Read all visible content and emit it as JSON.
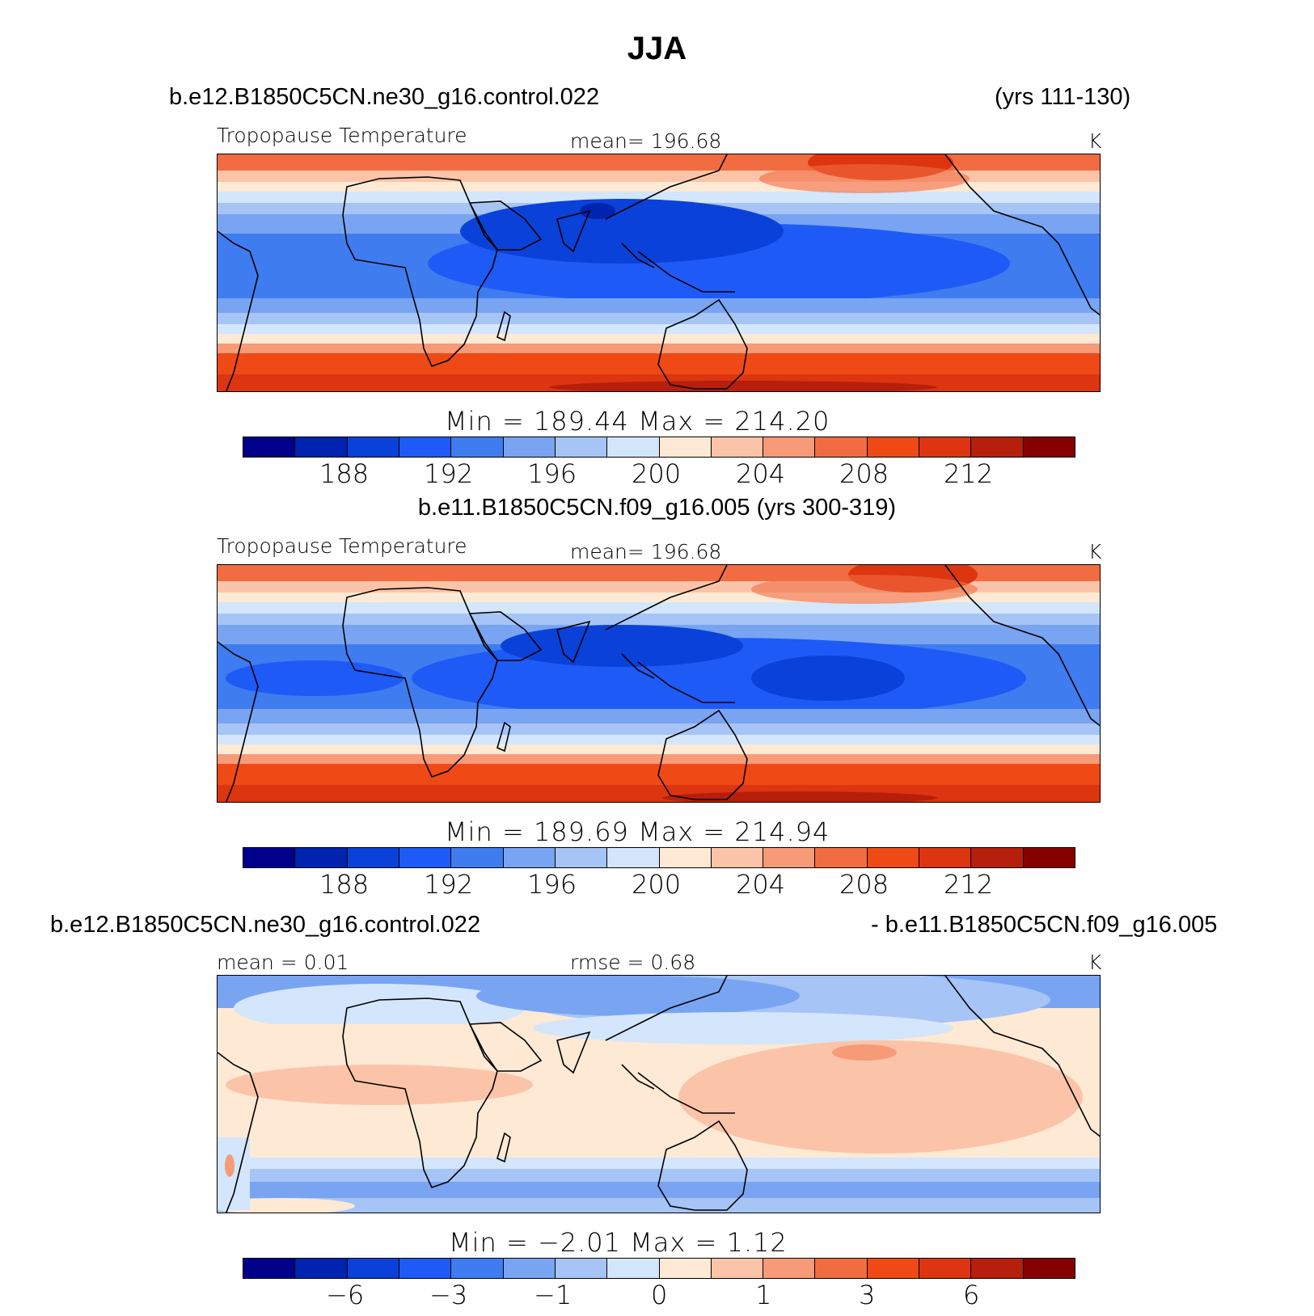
{
  "title": "JJA",
  "colors": [
    "#00008a",
    "#0023b0",
    "#0a41d8",
    "#1e5af6",
    "#3f7cf0",
    "#78a4f2",
    "#a6c4f6",
    "#d3e6fb",
    "#fde9d4",
    "#fbc4a8",
    "#f79a78",
    "#f26c42",
    "#ef4a16",
    "#dc3510",
    "#b61f0b",
    "#860000"
  ],
  "panels": [
    {
      "case_left": "b.e12.B1850C5CN.ne30_g16.control.022",
      "case_right": "(yrs 111-130)",
      "label_left": "Tropopause Temperature",
      "label_center": "mean=  196.68",
      "units": "K",
      "min_label": "Min",
      "min_value": "189.44",
      "max_label": "Max",
      "max_value": "214.20",
      "min_max_text": "Min  =  189.44  Max  =  214.20",
      "ticks": [
        "188",
        "192",
        "196",
        "200",
        "204",
        "208",
        "212"
      ]
    },
    {
      "case_left": "b.e11.B1850C5CN.f09_g16.005 (yrs 300-319)",
      "case_right": "",
      "label_left": "Tropopause Temperature",
      "label_center": "mean=  196.68",
      "units": "K",
      "min_max_text": "Min  =  189.69  Max  =  214.94",
      "ticks": [
        "188",
        "192",
        "196",
        "200",
        "204",
        "208",
        "212"
      ]
    },
    {
      "case_left": "b.e12.B1850C5CN.ne30_g16.control.022",
      "case_right": "- b.e11.B1850C5CN.f09_g16.005",
      "label_left": "mean =    0.01",
      "label_center": "rmse =    0.68",
      "units": "K",
      "min_max_text": "Min  =   −2.01  Max  =    1.12",
      "ticks": [
        "−6",
        "−3",
        "−1",
        "0",
        "1",
        "3",
        "6"
      ]
    }
  ]
}
